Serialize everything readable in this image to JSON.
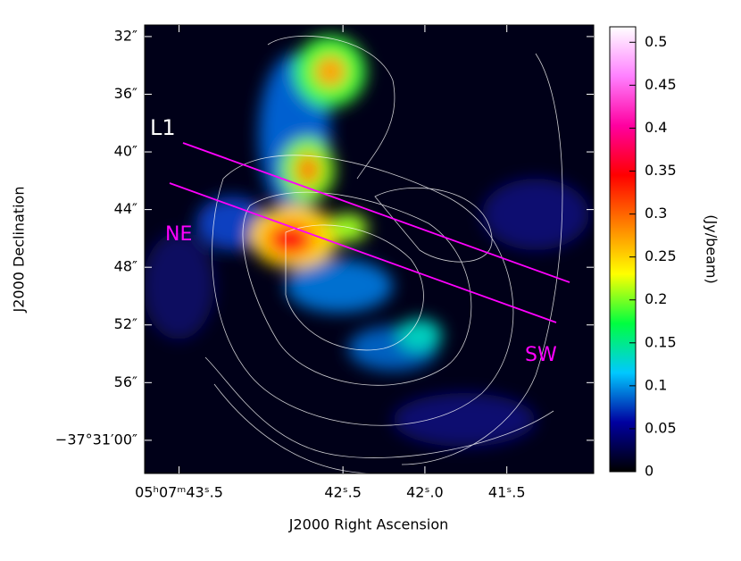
{
  "chart_data": {
    "type": "image",
    "xlabel": "J2000 Right Ascension",
    "ylabel": "J2000 Declination",
    "xlim": [
      43.71,
      40.97
    ],
    "xticks": [
      {
        "value": 43.5,
        "label": "05ʰ07ᵐ43ˢ.5"
      },
      {
        "value": 42.5,
        "label": "42ˢ.5"
      },
      {
        "value": 42.0,
        "label": "42ˢ.0"
      },
      {
        "value": 41.5,
        "label": "41ˢ.5"
      }
    ],
    "ylim": [
      62.3,
      31.2
    ],
    "yticks": [
      {
        "value": 32,
        "label": "32″"
      },
      {
        "value": 36,
        "label": "36″"
      },
      {
        "value": 40,
        "label": "40″"
      },
      {
        "value": 44,
        "label": "44″"
      },
      {
        "value": 48,
        "label": "48″"
      },
      {
        "value": 52,
        "label": "52″"
      },
      {
        "value": 56,
        "label": "56″"
      },
      {
        "value": 60,
        "label": "−37°31′00″"
      }
    ],
    "annotations": [
      "L1",
      "NE",
      "SW"
    ],
    "colorbar": {
      "label": "(Jy/beam)",
      "lim": [
        0,
        0.518
      ],
      "ticks": [
        0,
        0.05,
        0.1,
        0.15,
        0.2,
        0.25,
        0.3,
        0.35,
        0.4,
        0.45,
        0.5
      ],
      "colors": [
        "#000000",
        "#0000a0",
        "#00c8ff",
        "#00ff40",
        "#ffff00",
        "#ff8000",
        "#ff0000",
        "#ff00a0",
        "#ff80ff",
        "#ffffff"
      ]
    }
  }
}
